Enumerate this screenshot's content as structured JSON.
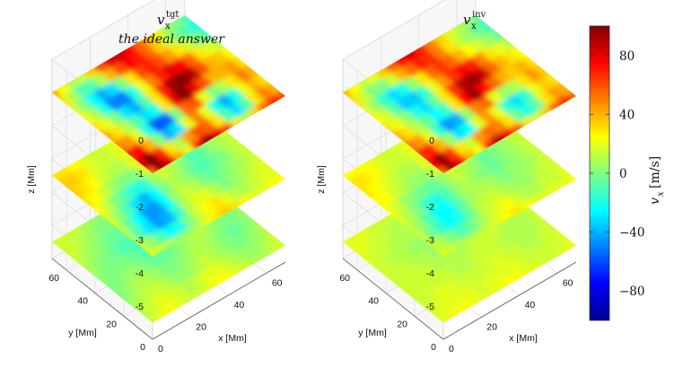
{
  "chart_data": {
    "type": "heatmap",
    "subtype": "stacked 3D depth slices",
    "colormap": "jet",
    "colorbar": {
      "label_symbol": "v",
      "label_sub": "x",
      "label_unit": "[m/s]",
      "range": [
        -100,
        100
      ],
      "ticks": [
        "80",
        "40",
        "0",
        "−40",
        "−80"
      ],
      "tick_values": [
        80,
        40,
        0,
        -40,
        -80
      ]
    },
    "panels": [
      {
        "title_symbol": "v",
        "title_sub": "x",
        "title_sup": "tgt",
        "annotation": "the ideal answer",
        "slice_depths_Mm": [
          -1,
          -3.5,
          -5.5
        ],
        "slices": [
          [
            [
              55,
              95,
              80,
              40,
              20,
              75,
              95,
              80,
              60,
              30,
              10,
              35,
              55,
              70,
              60
            ],
            [
              80,
              100,
              70,
              30,
              10,
              45,
              60,
              55,
              30,
              -10,
              -30,
              -10,
              30,
              50,
              40
            ],
            [
              70,
              75,
              40,
              0,
              -40,
              -30,
              20,
              50,
              20,
              -20,
              -40,
              -20,
              20,
              40,
              30
            ],
            [
              50,
              45,
              20,
              -20,
              -60,
              -55,
              0,
              55,
              60,
              20,
              0,
              10,
              30,
              50,
              40
            ],
            [
              40,
              30,
              10,
              -10,
              -30,
              -20,
              30,
              80,
              100,
              80,
              60,
              40,
              40,
              45,
              30
            ],
            [
              30,
              20,
              0,
              -30,
              -40,
              -10,
              30,
              70,
              95,
              100,
              90,
              60,
              40,
              35,
              25
            ],
            [
              25,
              10,
              -20,
              -50,
              -50,
              -20,
              20,
              50,
              70,
              80,
              75,
              55,
              30,
              20,
              10
            ],
            [
              20,
              0,
              -25,
              -40,
              -30,
              0,
              30,
              60,
              70,
              60,
              45,
              30,
              15,
              0,
              -10
            ],
            [
              30,
              10,
              -10,
              -10,
              10,
              40,
              60,
              75,
              70,
              55,
              35,
              15,
              0,
              -10,
              -20
            ],
            [
              40,
              25,
              10,
              15,
              35,
              60,
              80,
              85,
              75,
              55,
              40,
              20,
              5,
              0,
              -10
            ]
          ],
          [
            [
              20,
              15,
              10,
              5,
              5,
              10,
              20,
              30,
              35,
              30,
              25,
              20,
              20,
              25,
              25
            ],
            [
              15,
              5,
              -10,
              -25,
              -20,
              0,
              15,
              25,
              30,
              20,
              10,
              10,
              15,
              20,
              20
            ],
            [
              10,
              -10,
              -30,
              -45,
              -40,
              -15,
              10,
              20,
              20,
              10,
              0,
              5,
              10,
              15,
              20
            ],
            [
              15,
              -5,
              -25,
              -45,
              -45,
              -25,
              5,
              15,
              10,
              0,
              -5,
              0,
              5,
              10,
              15
            ],
            [
              20,
              5,
              -10,
              -30,
              -40,
              -25,
              0,
              10,
              5,
              -5,
              -10,
              -5,
              0,
              10,
              15
            ],
            [
              25,
              15,
              0,
              -10,
              -20,
              -15,
              5,
              15,
              10,
              0,
              -10,
              -5,
              5,
              10,
              15
            ],
            [
              30,
              25,
              15,
              5,
              0,
              0,
              15,
              30,
              35,
              25,
              10,
              0,
              5,
              10,
              15
            ],
            [
              35,
              30,
              25,
              15,
              10,
              10,
              20,
              40,
              50,
              45,
              30,
              15,
              10,
              15,
              20
            ],
            [
              35,
              35,
              30,
              20,
              15,
              15,
              20,
              35,
              45,
              40,
              30,
              20,
              15,
              20,
              20
            ],
            [
              30,
              30,
              25,
              20,
              15,
              15,
              20,
              25,
              30,
              30,
              25,
              20,
              20,
              20,
              20
            ]
          ],
          [
            [
              15,
              20,
              25,
              20,
              15,
              15,
              20,
              25,
              25,
              20,
              15,
              10,
              10,
              15,
              15
            ],
            [
              10,
              15,
              20,
              20,
              15,
              10,
              15,
              20,
              20,
              15,
              10,
              5,
              5,
              10,
              15
            ],
            [
              5,
              10,
              15,
              15,
              10,
              5,
              5,
              10,
              15,
              10,
              5,
              0,
              0,
              5,
              10
            ],
            [
              0,
              5,
              10,
              10,
              5,
              0,
              0,
              5,
              10,
              10,
              5,
              0,
              -5,
              0,
              5
            ],
            [
              0,
              0,
              5,
              5,
              0,
              -5,
              -5,
              0,
              5,
              10,
              10,
              5,
              0,
              0,
              5
            ],
            [
              5,
              0,
              0,
              0,
              -5,
              -10,
              -5,
              0,
              10,
              15,
              15,
              10,
              5,
              5,
              10
            ],
            [
              10,
              5,
              0,
              -5,
              -10,
              -10,
              -5,
              5,
              15,
              20,
              20,
              15,
              10,
              10,
              10
            ],
            [
              15,
              10,
              5,
              0,
              -5,
              -5,
              0,
              10,
              15,
              20,
              20,
              15,
              10,
              10,
              15
            ],
            [
              15,
              15,
              10,
              5,
              0,
              0,
              5,
              10,
              15,
              15,
              15,
              10,
              10,
              15,
              15
            ],
            [
              15,
              15,
              15,
              10,
              5,
              5,
              10,
              10,
              15,
              15,
              10,
              10,
              10,
              15,
              20
            ]
          ]
        ]
      },
      {
        "title_symbol": "v",
        "title_sub": "x",
        "title_sup": "inv",
        "slice_depths_Mm": [
          -1,
          -3.5,
          -5.5
        ],
        "slices": [
          [
            [
              55,
              90,
              75,
              40,
              25,
              70,
              90,
              75,
              55,
              30,
              15,
              35,
              55,
              65,
              55
            ],
            [
              75,
              95,
              65,
              30,
              15,
              45,
              55,
              50,
              30,
              -5,
              -20,
              -5,
              30,
              45,
              40
            ],
            [
              65,
              70,
              40,
              5,
              -30,
              -25,
              20,
              45,
              20,
              -15,
              -30,
              -15,
              20,
              35,
              30
            ],
            [
              50,
              45,
              20,
              -15,
              -45,
              -40,
              5,
              50,
              55,
              20,
              5,
              10,
              30,
              45,
              35
            ],
            [
              40,
              30,
              10,
              -5,
              -25,
              -15,
              30,
              75,
              95,
              75,
              55,
              40,
              35,
              40,
              30
            ],
            [
              30,
              20,
              5,
              -20,
              -30,
              -5,
              30,
              65,
              90,
              95,
              85,
              55,
              40,
              30,
              25
            ],
            [
              25,
              15,
              -10,
              -35,
              -35,
              -15,
              20,
              45,
              65,
              75,
              70,
              50,
              30,
              20,
              10
            ],
            [
              20,
              5,
              -15,
              -30,
              -20,
              5,
              30,
              55,
              65,
              55,
              40,
              25,
              15,
              5,
              -5
            ],
            [
              30,
              15,
              0,
              0,
              15,
              40,
              55,
              70,
              65,
              50,
              30,
              15,
              5,
              -5,
              -10
            ],
            [
              40,
              25,
              15,
              20,
              35,
              55,
              75,
              80,
              70,
              50,
              35,
              20,
              10,
              5,
              -5
            ]
          ],
          [
            [
              20,
              15,
              10,
              10,
              10,
              15,
              20,
              25,
              30,
              25,
              20,
              20,
              20,
              20,
              25
            ],
            [
              15,
              10,
              0,
              -10,
              -5,
              5,
              15,
              20,
              25,
              15,
              10,
              10,
              15,
              15,
              20
            ],
            [
              15,
              0,
              -15,
              -25,
              -20,
              -5,
              10,
              15,
              15,
              10,
              5,
              5,
              10,
              15,
              15
            ],
            [
              15,
              5,
              -10,
              -25,
              -25,
              -10,
              5,
              10,
              10,
              5,
              0,
              5,
              5,
              10,
              15
            ],
            [
              20,
              10,
              0,
              -15,
              -20,
              -10,
              5,
              10,
              5,
              0,
              -5,
              0,
              5,
              10,
              15
            ],
            [
              25,
              15,
              5,
              0,
              -5,
              -5,
              5,
              15,
              10,
              5,
              -5,
              0,
              5,
              10,
              15
            ],
            [
              25,
              25,
              15,
              10,
              5,
              5,
              15,
              25,
              30,
              20,
              10,
              5,
              5,
              10,
              15
            ],
            [
              30,
              25,
              20,
              15,
              10,
              10,
              20,
              35,
              40,
              35,
              25,
              15,
              10,
              15,
              20
            ],
            [
              30,
              30,
              25,
              20,
              15,
              15,
              20,
              30,
              35,
              35,
              25,
              20,
              15,
              20,
              20
            ],
            [
              25,
              25,
              25,
              20,
              15,
              15,
              20,
              25,
              25,
              25,
              20,
              20,
              20,
              20,
              20
            ]
          ],
          [
            [
              20,
              20,
              25,
              25,
              20,
              20,
              20,
              25,
              25,
              20,
              20,
              15,
              15,
              20,
              20
            ],
            [
              15,
              20,
              20,
              20,
              20,
              15,
              20,
              20,
              20,
              20,
              15,
              15,
              15,
              15,
              20
            ],
            [
              15,
              15,
              20,
              20,
              15,
              15,
              15,
              15,
              20,
              15,
              15,
              10,
              10,
              15,
              15
            ],
            [
              15,
              15,
              15,
              15,
              15,
              10,
              10,
              15,
              15,
              15,
              10,
              10,
              10,
              10,
              15
            ],
            [
              15,
              15,
              15,
              15,
              10,
              10,
              10,
              10,
              15,
              15,
              15,
              10,
              10,
              10,
              15
            ],
            [
              15,
              15,
              15,
              10,
              10,
              5,
              10,
              10,
              15,
              20,
              20,
              15,
              10,
              10,
              15
            ],
            [
              15,
              15,
              10,
              10,
              5,
              5,
              10,
              15,
              20,
              20,
              20,
              15,
              15,
              15,
              15
            ],
            [
              20,
              15,
              15,
              10,
              10,
              10,
              10,
              15,
              20,
              20,
              20,
              15,
              15,
              15,
              20
            ],
            [
              20,
              20,
              15,
              15,
              10,
              10,
              15,
              15,
              20,
              20,
              15,
              15,
              15,
              20,
              20
            ],
            [
              20,
              20,
              20,
              15,
              15,
              15,
              15,
              15,
              20,
              20,
              15,
              15,
              15,
              20,
              20
            ]
          ]
        ]
      }
    ],
    "axes": {
      "x": {
        "label": "x [Mm]",
        "ticks": [
          "0",
          "20",
          "40",
          "60"
        ],
        "tick_values": [
          0,
          20,
          40,
          60
        ],
        "range": [
          0,
          70
        ]
      },
      "y": {
        "label": "y [Mm]",
        "ticks": [
          "0",
          "20",
          "40",
          "60"
        ],
        "tick_values": [
          0,
          20,
          40,
          60
        ],
        "range": [
          0,
          70
        ]
      },
      "z": {
        "label": "z [Mm]",
        "ticks": [
          "0",
          "-1",
          "-2",
          "-3",
          "-4",
          "-5"
        ],
        "tick_values": [
          0,
          -1,
          -2,
          -3,
          -4,
          -5
        ],
        "range": [
          -6,
          0
        ]
      }
    },
    "grid": true
  }
}
